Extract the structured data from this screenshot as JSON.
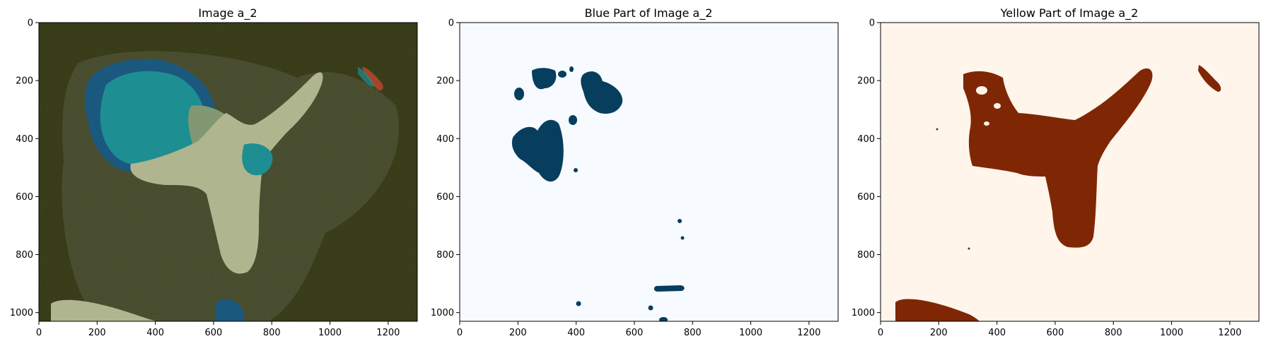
{
  "figure": {
    "colors": {
      "dark_background": "#2d300a",
      "mid_background": "#4c5437",
      "light_yellow": "#aeb58a",
      "sage_green": "#7c946c",
      "teal": "#0e8a8e",
      "navy_blue": "#0b4f79",
      "rust_red": "#a33a1c",
      "blue_mask_fill": "#073e5e",
      "blue_mask_background": "#f7fbff",
      "yellow_mask_fill": "#7f2704",
      "yellow_mask_background": "#fff5eb"
    }
  },
  "chart_data": [
    {
      "type": "image",
      "title": "Image a_2",
      "xlim": [
        0,
        1300
      ],
      "ylim": [
        1030,
        0
      ],
      "x_ticks": [
        0,
        200,
        400,
        600,
        800,
        1000,
        1200
      ],
      "y_ticks": [
        0,
        200,
        400,
        600,
        800,
        1000
      ],
      "colormap": "quantized false-color segmentation"
    },
    {
      "type": "image",
      "title": "Blue Part of Image a_2",
      "xlim": [
        0,
        1300
      ],
      "ylim": [
        1030,
        0
      ],
      "x_ticks": [
        0,
        200,
        400,
        600,
        800,
        1000,
        1200
      ],
      "y_ticks": [
        0,
        200,
        400,
        600,
        800,
        1000
      ],
      "colormap": "Blues (binary mask)"
    },
    {
      "type": "image",
      "title": "Yellow Part of Image a_2",
      "xlim": [
        0,
        1300
      ],
      "ylim": [
        1030,
        0
      ],
      "x_ticks": [
        0,
        200,
        400,
        600,
        800,
        1000,
        1200
      ],
      "y_ticks": [
        0,
        200,
        400,
        600,
        800,
        1000
      ],
      "colormap": "Oranges (binary mask)"
    }
  ]
}
